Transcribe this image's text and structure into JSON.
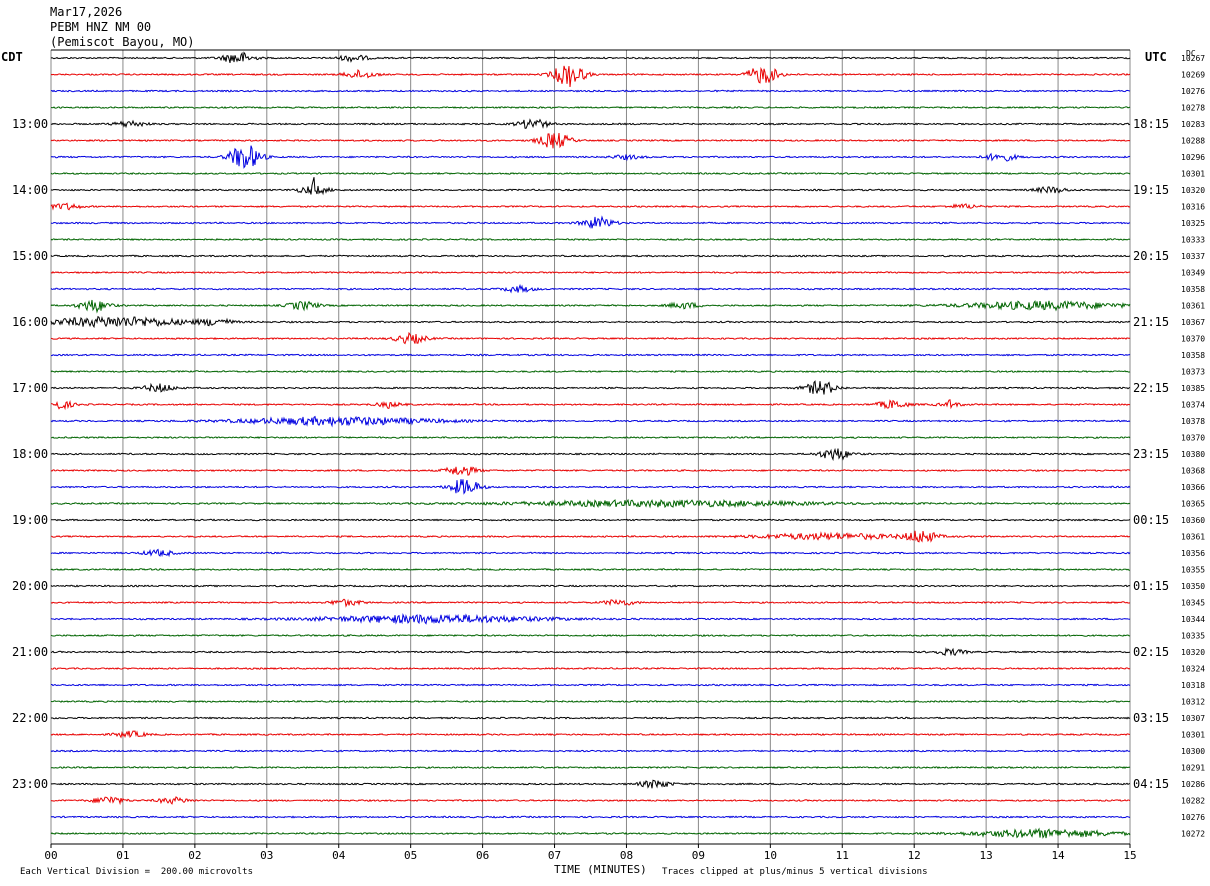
{
  "header": {
    "date": "Mar17,2026",
    "station": "PEBM HNZ NM 00",
    "location": "(Pemiscot Bayou, MO)"
  },
  "left_zone_label": "CDT",
  "right_zone_label": "UTC",
  "dc_header": "DC",
  "footer": {
    "xlabel": "TIME (MINUTES)",
    "division_note": "Each Vertical Division =  200.00 microvolts",
    "clip_note": "Traces clipped at plus/minus 5 vertical divisions"
  },
  "chart_data": {
    "type": "line",
    "title": "PEBM HNZ NM 00",
    "xlabel": "TIME (MINUTES)",
    "xlim": [
      0,
      15
    ],
    "x_ticks": [
      "00",
      "01",
      "02",
      "03",
      "04",
      "05",
      "06",
      "07",
      "08",
      "09",
      "10",
      "11",
      "12",
      "13",
      "14",
      "15"
    ],
    "left_time_labels": [
      "13:00",
      "14:00",
      "15:00",
      "16:00",
      "17:00",
      "18:00",
      "19:00",
      "20:00",
      "21:00",
      "22:00",
      "23:00"
    ],
    "right_time_labels": [
      "18:15",
      "19:15",
      "20:15",
      "21:15",
      "22:15",
      "23:15",
      "00:15",
      "01:15",
      "02:15",
      "03:15",
      "04:15"
    ],
    "trace_colors": [
      "#000000",
      "#e80000",
      "#0000e0",
      "#006400"
    ],
    "rows_per_hour": 4,
    "dc_offsets": [
      "10267",
      "10269",
      "10276",
      "10278",
      "10283",
      "10288",
      "10296",
      "10301",
      "10320",
      "10316",
      "10325",
      "10333",
      "10337",
      "10349",
      "10358",
      "10361",
      "10367",
      "10370",
      "10358",
      "10373",
      "10385",
      "10374",
      "10378",
      "10370",
      "10380",
      "10368",
      "10366",
      "10365",
      "10360",
      "10361",
      "10356",
      "10355",
      "10350",
      "10345",
      "10344",
      "10335",
      "10320",
      "10324",
      "10318",
      "10312",
      "10307",
      "10301",
      "10300",
      "10291",
      "10286",
      "10282",
      "10276",
      "10272"
    ],
    "events": [
      {
        "row": 0,
        "min": 2.6,
        "amp": 6
      },
      {
        "row": 0,
        "min": 4.2,
        "amp": 3
      },
      {
        "row": 1,
        "min": 4.3,
        "amp": 4
      },
      {
        "row": 1,
        "min": 7.2,
        "amp": 12
      },
      {
        "row": 1,
        "min": 9.9,
        "amp": 9
      },
      {
        "row": 4,
        "min": 1.1,
        "amp": 3
      },
      {
        "row": 4,
        "min": 6.7,
        "amp": 5
      },
      {
        "row": 5,
        "min": 7.0,
        "amp": 8
      },
      {
        "row": 6,
        "min": 2.7,
        "amp": 13
      },
      {
        "row": 6,
        "min": 13.2,
        "amp": 4
      },
      {
        "row": 6,
        "min": 8.0,
        "amp": 2
      },
      {
        "row": 8,
        "min": 3.65,
        "amp": 14,
        "spike": 1
      },
      {
        "row": 8,
        "min": 13.9,
        "amp": 3
      },
      {
        "row": 9,
        "min": 0.2,
        "amp": 3
      },
      {
        "row": 9,
        "min": 12.7,
        "amp": 2
      },
      {
        "row": 10,
        "min": 7.6,
        "amp": 6
      },
      {
        "row": 14,
        "min": 6.5,
        "amp": 3
      },
      {
        "row": 15,
        "min": 0.6,
        "amp": 6
      },
      {
        "row": 15,
        "min": 3.5,
        "amp": 4
      },
      {
        "row": 15,
        "min": 8.8,
        "amp": 3
      },
      {
        "row": 15,
        "min": 13.8,
        "amp": 4,
        "wide": 1.3
      },
      {
        "row": 16,
        "min": 0.9,
        "amp": 5,
        "wide": 1.2
      },
      {
        "row": 16,
        "min": 2.3,
        "amp": 3
      },
      {
        "row": 17,
        "min": 5.0,
        "amp": 5
      },
      {
        "row": 20,
        "min": 1.5,
        "amp": 4
      },
      {
        "row": 20,
        "min": 10.7,
        "amp": 7
      },
      {
        "row": 21,
        "min": 0.1,
        "amp": 4
      },
      {
        "row": 21,
        "min": 4.7,
        "amp": 6,
        "spike": 1
      },
      {
        "row": 21,
        "min": 11.7,
        "amp": 4
      },
      {
        "row": 21,
        "min": 12.5,
        "amp": 5,
        "spike": 1
      },
      {
        "row": 22,
        "min": 4.0,
        "amp": 4,
        "wide": 1.6
      },
      {
        "row": 24,
        "min": 10.9,
        "amp": 6
      },
      {
        "row": 25,
        "min": 5.7,
        "amp": 5
      },
      {
        "row": 26,
        "min": 5.75,
        "amp": 8
      },
      {
        "row": 27,
        "min": 8.5,
        "amp": 3,
        "wide": 2.5
      },
      {
        "row": 29,
        "min": 10.8,
        "amp": 3,
        "wide": 1.2
      },
      {
        "row": 29,
        "min": 12.1,
        "amp": 6
      },
      {
        "row": 30,
        "min": 1.5,
        "amp": 3
      },
      {
        "row": 33,
        "min": 4.1,
        "amp": 3
      },
      {
        "row": 33,
        "min": 7.9,
        "amp": 3
      },
      {
        "row": 34,
        "min": 5.3,
        "amp": 4,
        "wide": 1.8
      },
      {
        "row": 36,
        "min": 12.5,
        "amp": 3
      },
      {
        "row": 41,
        "min": 1.1,
        "amp": 3
      },
      {
        "row": 44,
        "min": 8.4,
        "amp": 4
      },
      {
        "row": 45,
        "min": 0.8,
        "amp": 4
      },
      {
        "row": 45,
        "min": 1.7,
        "amp": 3
      },
      {
        "row": 47,
        "min": 13.8,
        "amp": 4,
        "wide": 1.2
      }
    ]
  }
}
